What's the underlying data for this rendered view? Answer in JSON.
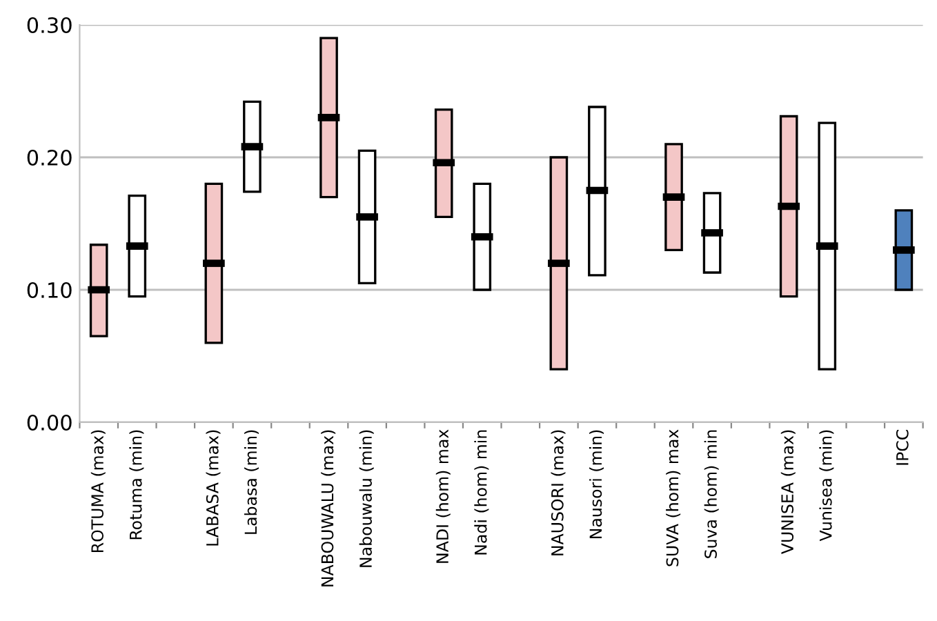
{
  "chart_data": {
    "type": "bar",
    "categories": [
      "ROTUMA (max)",
      "Rotuma (min)",
      null,
      "LABASA (max)",
      "Labasa (min)",
      null,
      "NABOUWALU (max)",
      "Nabouwalu (min)",
      null,
      "NADI (hom) max",
      "Nadi (hom) min",
      null,
      "NAUSORI (max)",
      "Nausori (min)",
      null,
      "SUVA (hom) max",
      "Suva (hom) min",
      null,
      "VUNISEA (max)",
      "Vunisea (min)",
      null,
      "IPCC"
    ],
    "series": [
      {
        "values": [
          0.069,
          0.076,
          null,
          0.12,
          0.068,
          null,
          0.12,
          0.1,
          null,
          0.081,
          0.08,
          null,
          0.16,
          0.127,
          null,
          0.08,
          0.06,
          null,
          0.136,
          0.186,
          null,
          0.06
        ],
        "base": [
          0.065,
          0.095,
          null,
          0.06,
          0.174,
          null,
          0.17,
          0.105,
          null,
          0.155,
          0.1,
          null,
          0.04,
          0.111,
          null,
          0.13,
          0.113,
          null,
          0.095,
          0.04,
          null,
          0.1
        ],
        "colors": [
          "#f4c7c7",
          "#ffffff",
          null,
          "#f4c7c7",
          "#ffffff",
          null,
          "#f4c7c7",
          "#ffffff",
          null,
          "#f4c7c7",
          "#ffffff",
          null,
          "#f4c7c7",
          "#ffffff",
          null,
          "#f4c7c7",
          "#ffffff",
          null,
          "#f4c7c7",
          "#ffffff",
          null,
          "#4f81bd"
        ]
      },
      {
        "type": "scatter",
        "color": "#000000",
        "marker": "square",
        "values": [
          0.1,
          0.133,
          null,
          0.12,
          0.208,
          null,
          0.23,
          0.155,
          null,
          0.196,
          0.14,
          null,
          0.12,
          0.175,
          null,
          0.17,
          0.143,
          null,
          0.163,
          0.133,
          null,
          0.13
        ]
      }
    ],
    "ylim": [
      0,
      0.3
    ],
    "yticks": [
      {
        "value": 0,
        "label": "0.00"
      },
      {
        "value": 0.1,
        "label": "0.10"
      },
      {
        "value": 0.2,
        "label": "0.20"
      },
      {
        "value": 0.3,
        "label": "0.30"
      }
    ],
    "grid": "y"
  }
}
